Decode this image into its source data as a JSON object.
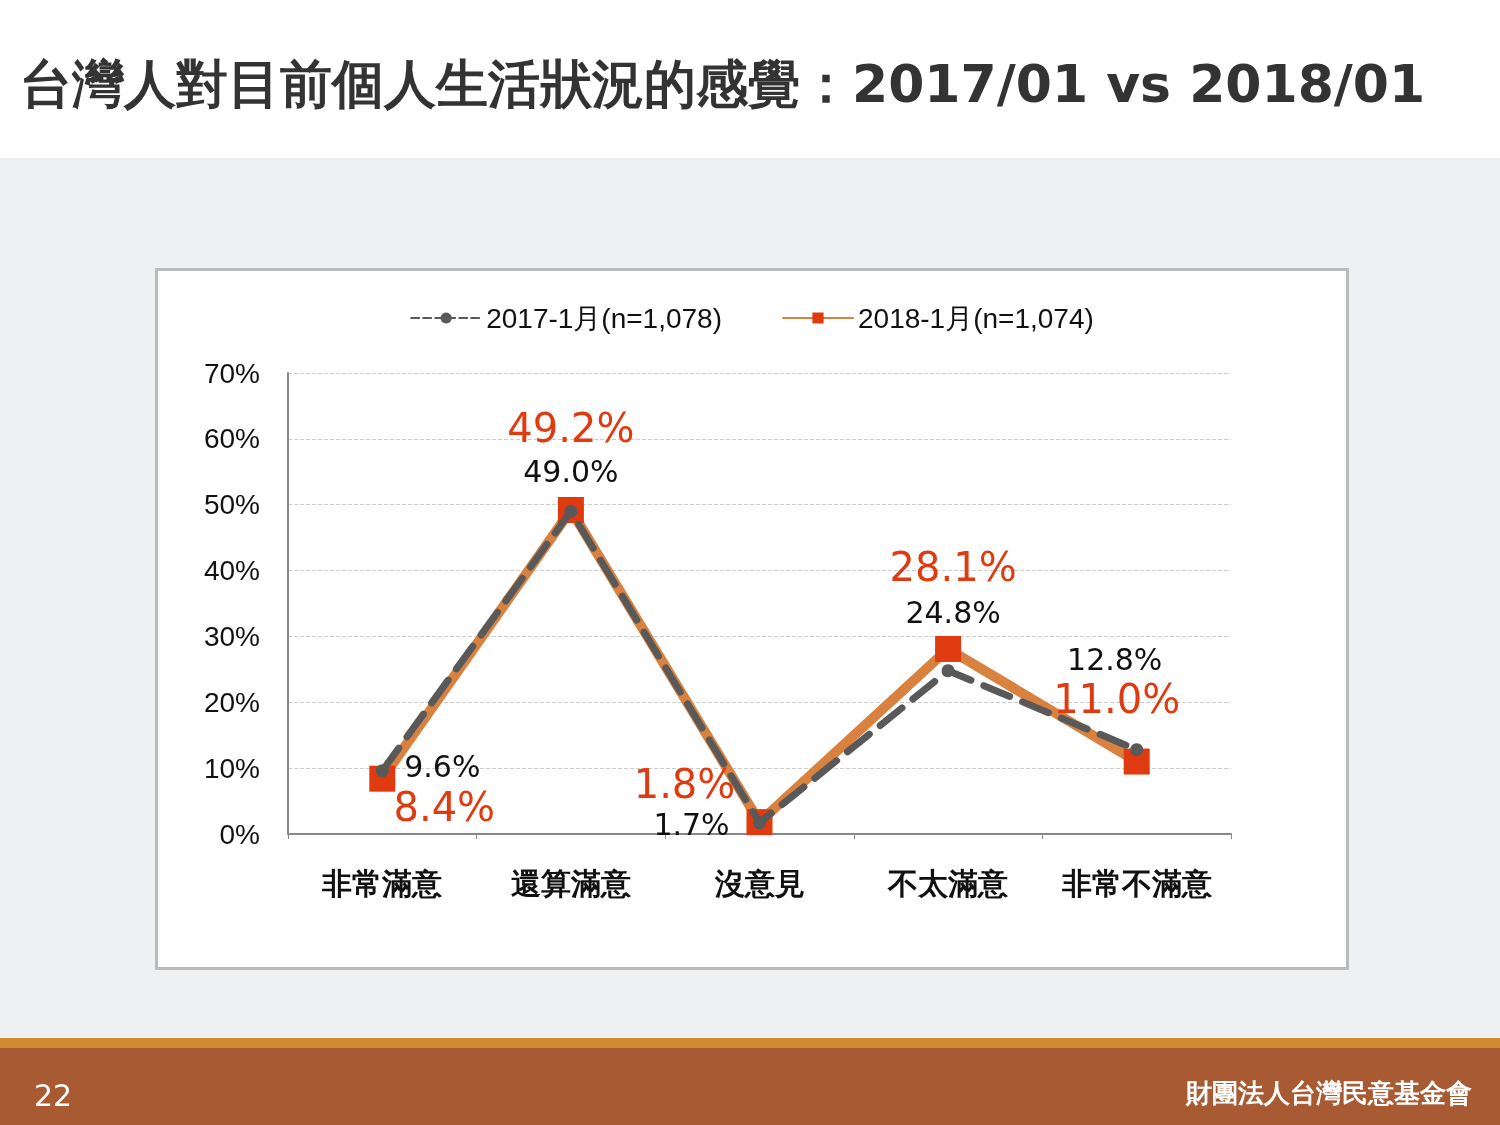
{
  "chart_data": {
    "type": "line",
    "title": "台灣人對目前個人生活狀況的感覺：2017/01 vs 2018/01",
    "categories": [
      "非常滿意",
      "還算滿意",
      "沒意見",
      "不太滿意",
      "非常不滿意"
    ],
    "series": [
      {
        "name": "2017-1月(n=1,078)",
        "color": "#595959",
        "values": [
          9.6,
          49.0,
          1.7,
          24.8,
          12.8
        ],
        "value_labels": [
          "9.6%",
          "49.0%",
          "1.7%",
          "24.8%",
          "12.8%"
        ],
        "marker": "circle",
        "line_style": "dashed"
      },
      {
        "name": "2018-1月(n=1,074)",
        "color": "#d9813f",
        "values": [
          8.4,
          49.2,
          1.8,
          28.1,
          11.0
        ],
        "value_labels": [
          "8.4%",
          "49.2%",
          "1.8%",
          "28.1%",
          "11.0%"
        ],
        "marker": "square",
        "line_style": "solid"
      }
    ],
    "ylim": [
      0,
      70
    ],
    "yticks": [
      {
        "value": 0,
        "label": "0%"
      },
      {
        "value": 10,
        "label": "10%"
      },
      {
        "value": 20,
        "label": "20%"
      },
      {
        "value": 30,
        "label": "30%"
      },
      {
        "value": 40,
        "label": "40%"
      },
      {
        "value": 50,
        "label": "50%"
      },
      {
        "value": 60,
        "label": "60%"
      },
      {
        "value": 70,
        "label": "70%"
      }
    ],
    "grid": "y",
    "legend": "top",
    "annotations": [
      "22",
      "財團法人台灣民意基金會"
    ]
  }
}
